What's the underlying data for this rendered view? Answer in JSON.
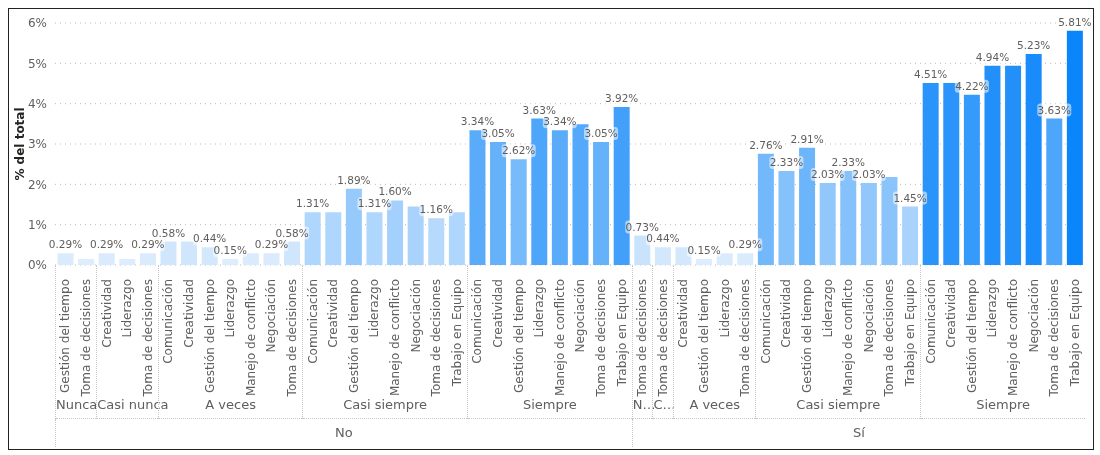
{
  "chart_data": {
    "type": "bar",
    "ylabel": "% del total",
    "categories": [
      "Gestión del tiempo",
      "Toma de decisiones",
      "Creatividad",
      "Liderazgo",
      "Toma de decisiones",
      "Comunicación",
      "Creatividad",
      "Gestión del tiempo",
      "Liderazgo",
      "Manejo de conflicto",
      "Negociación",
      "Toma de decisiones",
      "Comunicación",
      "Creatividad",
      "Gestión del tiempo",
      "Liderazgo",
      "Manejo de conflicto",
      "Negociación",
      "Toma de decisiones",
      "Trabajo en Equipo",
      "Comunicación",
      "Creatividad",
      "Gestión del tiempo",
      "Liderazgo",
      "Manejo de conflicto",
      "Negociación",
      "Toma de decisiones",
      "Trabajo en Equipo",
      "Toma de decisiones",
      "Toma de decisiones",
      "Creatividad",
      "Gestión del tiempo",
      "Liderazgo",
      "Toma de decisiones",
      "Comunicación",
      "Creatividad",
      "Gestión del tiempo",
      "Liderazgo",
      "Manejo de conflicto",
      "Negociación",
      "Toma de decisiones",
      "Trabajo en Equipo",
      "Comunicación",
      "Creatividad",
      "Gestión del tiempo",
      "Liderazgo",
      "Manejo de conflicto",
      "Negociación",
      "Toma de decisiones",
      "Trabajo en Equipo"
    ],
    "values": [
      0.29,
      0.15,
      0.29,
      0.15,
      0.29,
      0.58,
      0.58,
      0.44,
      0.15,
      0.29,
      0.29,
      0.58,
      1.31,
      1.31,
      1.89,
      1.31,
      1.6,
      1.45,
      1.16,
      1.31,
      3.34,
      3.05,
      2.62,
      3.63,
      3.34,
      3.49,
      3.05,
      3.92,
      0.73,
      0.44,
      0.44,
      0.15,
      0.29,
      0.29,
      2.76,
      2.33,
      2.91,
      2.03,
      2.33,
      2.03,
      2.18,
      1.45,
      4.51,
      4.51,
      4.22,
      4.94,
      4.94,
      5.23,
      3.63,
      5.81
    ],
    "value_labels": [
      "0.29%",
      null,
      "0.29%",
      null,
      "0.29%",
      "0.58%",
      null,
      "0.44%",
      "0.15%",
      null,
      "0.29%",
      "0.58%",
      "1.31%",
      null,
      "1.89%",
      "1.31%",
      "1.60%",
      null,
      "1.16%",
      null,
      "3.34%",
      "3.05%",
      "2.62%",
      "3.63%",
      "3.34%",
      null,
      "3.05%",
      "3.92%",
      "0.73%",
      "0.44%",
      null,
      "0.15%",
      null,
      "0.29%",
      "2.76%",
      "2.33%",
      "2.91%",
      "2.03%",
      "2.33%",
      "2.03%",
      null,
      "1.45%",
      "4.51%",
      null,
      "4.22%",
      "4.94%",
      null,
      "5.23%",
      "3.63%",
      "5.81%"
    ],
    "colors": [
      "#d9ebfd",
      "#deedfd",
      "#d9ebfd",
      "#deedfd",
      "#d9ebfd",
      "#cfe6fd",
      "#cfe6fd",
      "#d3e8fd",
      "#deedfd",
      "#d9ebfd",
      "#d9ebfd",
      "#cfe6fd",
      "#afd6fc",
      "#afd6fc",
      "#97cafc",
      "#afd6fc",
      "#a3d0fc",
      "#a9d3fc",
      "#b6d9fc",
      "#afd6fc",
      "#5aacfa",
      "#66b2fa",
      "#78bbfb",
      "#4ea6fa",
      "#5aacfa",
      "#54a9fa",
      "#66b2fa",
      "#42a0fa",
      "#c9e3fd",
      "#d3e8fd",
      "#d3e8fd",
      "#deedfd",
      "#d9ebfd",
      "#d9ebfd",
      "#72b8fb",
      "#85c1fb",
      "#6cb5fb",
      "#91c7fb",
      "#85c1fb",
      "#91c7fb",
      "#8bc4fb",
      "#a9d3fc",
      "#2a94fa",
      "#2a94fa",
      "#369afa",
      "#2390fa",
      "#2390fa",
      "#1a8bfa",
      "#4ea6fa",
      "#0a85fa"
    ],
    "ylim": [
      0,
      6
    ],
    "yticks": [
      {
        "value": 0,
        "label": "0%"
      },
      {
        "value": 1,
        "label": "1%"
      },
      {
        "value": 2,
        "label": "2%"
      },
      {
        "value": 3,
        "label": "3%"
      },
      {
        "value": 4,
        "label": "4%"
      },
      {
        "value": 5,
        "label": "5%"
      },
      {
        "value": 6,
        "label": "6%"
      }
    ],
    "grid": "y",
    "legend": false,
    "annotations": [
      "Nunca",
      "Casi nunca",
      "A veces",
      "Casi siempre",
      "Siempre",
      "N…",
      "C…",
      "A veces",
      "Casi siempre",
      "Siempre",
      "No",
      "Sí"
    ]
  }
}
